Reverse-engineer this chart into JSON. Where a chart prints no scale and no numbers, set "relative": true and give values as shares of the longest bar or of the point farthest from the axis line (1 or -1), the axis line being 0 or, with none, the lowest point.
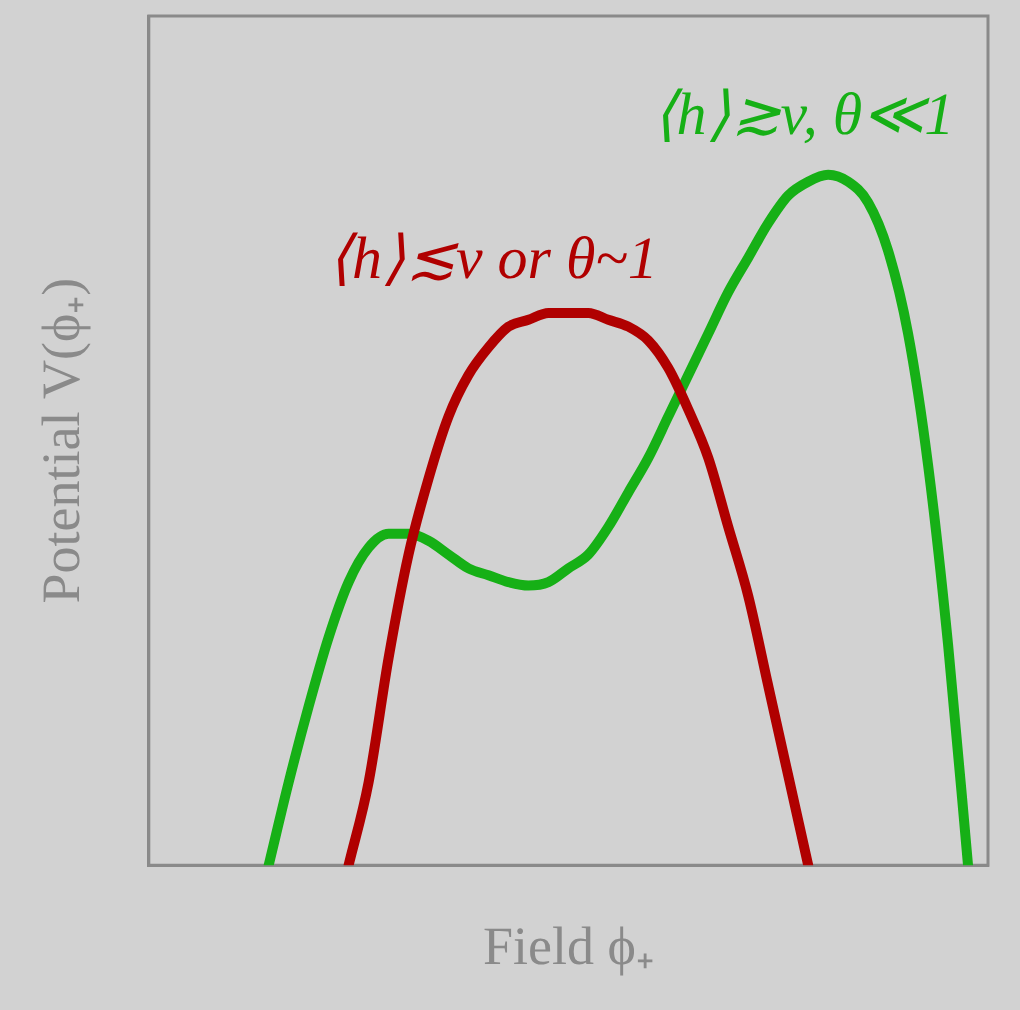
{
  "chart_data": {
    "type": "line",
    "relative": true,
    "xlabel": "Field ϕ₊",
    "ylabel": "Potential V(ϕ₊)",
    "marker": "none",
    "categories": [
      null,
      null,
      null,
      null,
      null,
      null,
      null,
      null,
      null,
      null,
      null,
      null,
      null,
      null,
      null,
      null,
      null,
      null,
      null,
      null,
      null,
      null,
      null,
      null,
      null,
      null,
      null,
      null,
      null,
      null,
      null,
      null,
      null,
      null,
      null,
      null,
      null,
      null,
      null,
      null,
      null,
      null,
      null
    ],
    "series": [
      {
        "name": "⟨h⟩≲v or θ~1",
        "color": "#b00000",
        "values": [
          null,
          null,
          null,
          null,
          null,
          null,
          null,
          null,
          null,
          null,
          0,
          0.12,
          0.3,
          0.45,
          0.56,
          0.65,
          0.71,
          0.75,
          0.78,
          0.79,
          0.8,
          0.8,
          0.8,
          0.79,
          0.78,
          0.76,
          0.72,
          0.66,
          0.59,
          0.49,
          0.39,
          0.26,
          0.13,
          0,
          null,
          null,
          null,
          null,
          null,
          null,
          null,
          null,
          null
        ]
      },
      {
        "name": "⟨h⟩≳v, θ≪1",
        "color": "#16b016",
        "values": [
          null,
          null,
          null,
          null,
          null,
          null,
          0,
          0.12,
          0.23,
          0.33,
          0.41,
          0.46,
          0.48,
          0.48,
          0.47,
          0.45,
          0.43,
          0.42,
          0.41,
          0.405,
          0.41,
          0.43,
          0.45,
          0.49,
          0.54,
          0.59,
          0.65,
          0.71,
          0.77,
          0.83,
          0.88,
          0.93,
          0.97,
          0.99,
          1,
          0.99,
          0.96,
          0.89,
          0.77,
          0.58,
          0.32,
          0,
          null
        ]
      }
    ]
  }
}
